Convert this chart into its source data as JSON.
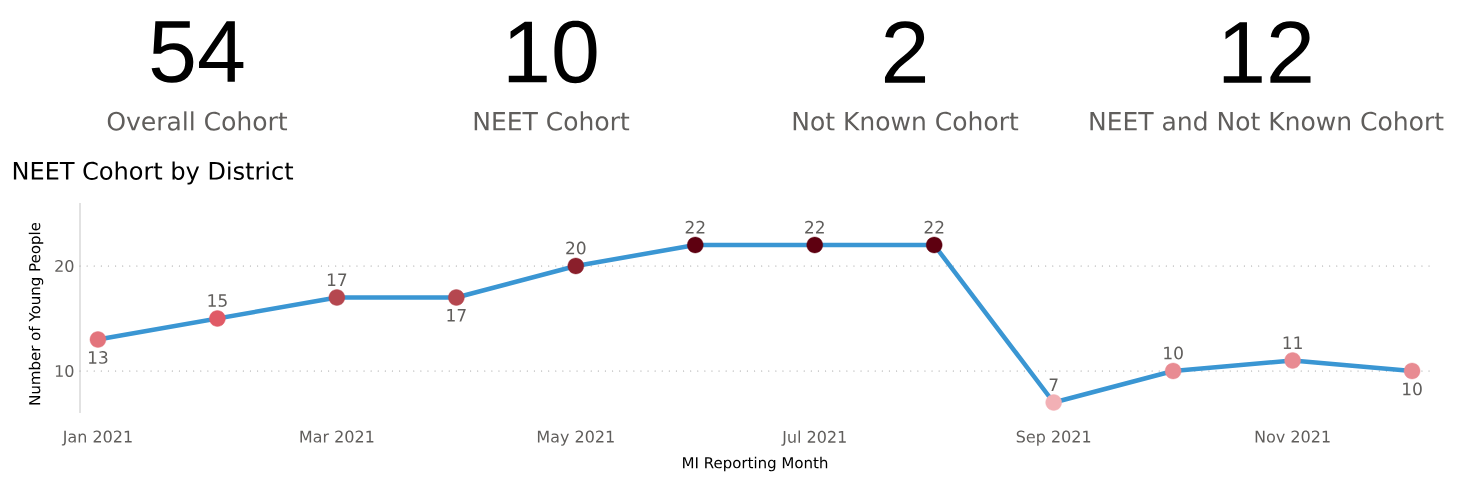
{
  "chart_data": [
    {
      "type": "other",
      "categories": [
        "Overall Cohort",
        "NEET Cohort",
        "Not Known Cohort",
        "NEET and Not Known Cohort"
      ],
      "values": [
        54,
        10,
        2,
        12
      ],
      "data_labels": true
    },
    {
      "type": "line",
      "title": "NEET Cohort by District",
      "xlabel": "MI Reporting Month",
      "ylabel": "Number of Young People",
      "categories": [
        "Jan 2021",
        null,
        "Mar 2021",
        null,
        "May 2021",
        null,
        "Jul 2021",
        null,
        "Sep 2021",
        null,
        "Nov 2021",
        null
      ],
      "values": [
        13,
        15,
        17,
        17,
        20,
        22,
        22,
        22,
        7,
        10,
        11,
        10
      ],
      "color": "#3a96d3",
      "colors": [
        "#e3747c",
        "#e05a66",
        "#b5474f",
        "#b5474f",
        "#8a1f2b",
        "#5e0010",
        "#5e0010",
        "#5e0010",
        "#f2b0b5",
        "#e88b92",
        "#e88b92",
        "#e88b92"
      ],
      "marker": "circle",
      "ylim": [
        6,
        26
      ],
      "yticks": [
        10,
        20
      ],
      "grid": "y",
      "data_labels": true
    }
  ]
}
